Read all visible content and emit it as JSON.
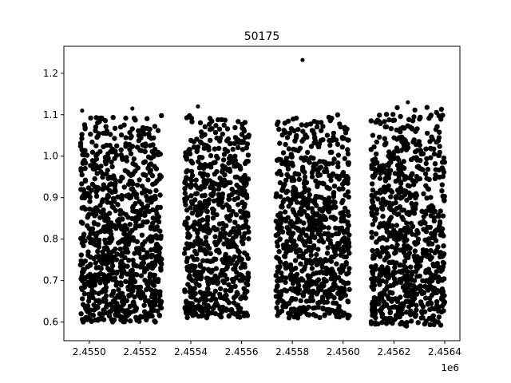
{
  "chart_data": {
    "type": "scatter",
    "title": "50175",
    "xlabel": "",
    "ylabel": "",
    "x_offset_label": "1e6",
    "xlim": [
      2454900,
      2456460
    ],
    "ylim": [
      0.555,
      1.265
    ],
    "x_ticks": [
      2455000,
      2455200,
      2455400,
      2455600,
      2455800,
      2456000,
      2456200,
      2456400
    ],
    "x_tick_labels": [
      "2.4550",
      "2.4552",
      "2.4554",
      "2.4556",
      "2.4558",
      "2.4560",
      "2.4562",
      "2.4564"
    ],
    "y_ticks": [
      0.6,
      0.7,
      0.8,
      0.9,
      1.0,
      1.1,
      1.2
    ],
    "y_tick_labels": [
      "0.6",
      "0.7",
      "0.8",
      "0.9",
      "1.0",
      "1.1",
      "1.2"
    ],
    "grid": false,
    "marker_color": "#000000",
    "segments": [
      {
        "x_start": 2454965,
        "x_end": 2455285,
        "y_min": 0.6,
        "y_max": 1.1
      },
      {
        "x_start": 2455375,
        "x_end": 2455630,
        "y_min": 0.61,
        "y_max": 1.1
      },
      {
        "x_start": 2455735,
        "x_end": 2456025,
        "y_min": 0.61,
        "y_max": 1.1
      },
      {
        "x_start": 2456110,
        "x_end": 2456400,
        "y_min": 0.59,
        "y_max": 1.12
      }
    ],
    "points": [
      {
        "x": 2454972,
        "y": 1.11
      },
      {
        "x": 2455170,
        "y": 1.115
      },
      {
        "x": 2455428,
        "y": 1.12
      },
      {
        "x": 2455840,
        "y": 1.232
      },
      {
        "x": 2456128,
        "y": 0.6
      },
      {
        "x": 2456180,
        "y": 0.61
      },
      {
        "x": 2456255,
        "y": 1.13
      },
      {
        "x": 2456366,
        "y": 0.6
      }
    ]
  }
}
